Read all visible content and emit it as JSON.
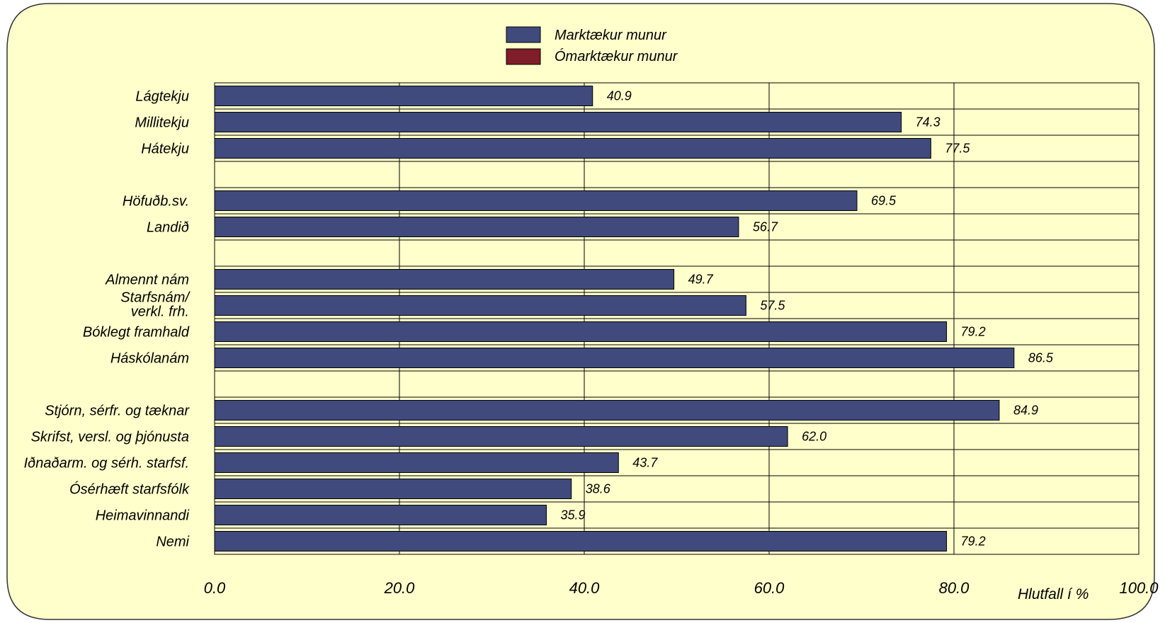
{
  "chart_data": {
    "type": "bar",
    "orientation": "horizontal",
    "categories": [
      "Lágtekju",
      "Millitekju",
      "Hátekju",
      "",
      "Höfuðb.sv.",
      "Landið",
      "",
      "Almennt nám",
      [
        "Starfsnám/",
        "verkl. frh."
      ],
      "Bóklegt framhald",
      "Háskólanám",
      "",
      "Stjórn, sérfr. og tæknar",
      "Skrifst, versl. og þjónusta",
      "Iðnaðarm. og sérh. starfsf.",
      "Ósérhæft starfsfólk",
      "Heimavinnandi",
      "Nemi"
    ],
    "values": [
      40.9,
      74.3,
      77.5,
      null,
      69.5,
      56.7,
      null,
      49.7,
      57.5,
      79.2,
      86.5,
      null,
      84.9,
      62.0,
      43.7,
      38.6,
      35.9,
      79.2
    ],
    "value_labels": [
      "40.9",
      "74.3",
      "77.5",
      "",
      "69.5",
      "56.7",
      "",
      "49.7",
      "57.5",
      "79.2",
      "86.5",
      "",
      "84.9",
      "62.0",
      "43.7",
      "38.6",
      "35.9",
      "79.2"
    ],
    "xlim": [
      0,
      100
    ],
    "xticks": [
      "0.0",
      "20.0",
      "40.0",
      "60.0",
      "80.0",
      "100.0"
    ],
    "xlabel": "Hlutfall í %",
    "grid": true,
    "legend_position": "top",
    "legend": [
      {
        "name": "Marktækur munur",
        "color": "#404a7d"
      },
      {
        "name": "Ómarktækur munur",
        "color": "#7f1d28"
      }
    ],
    "colors": {
      "bar": "#404a7d",
      "plot_background": "#ffffcc",
      "panel_background": "#ffffcc",
      "grid": "#000000"
    }
  }
}
